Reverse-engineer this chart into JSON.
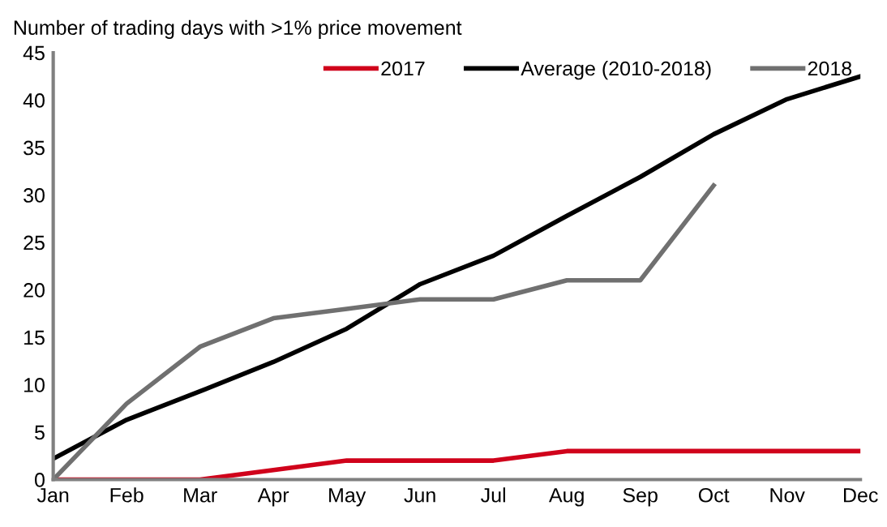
{
  "chart_data": {
    "type": "line",
    "title": "Number of trading days with >1% price movement",
    "categories": [
      "Jan",
      "Feb",
      "Mar",
      "Apr",
      "May",
      "Jun",
      "Jul",
      "Aug",
      "Sep",
      "Oct",
      "Nov",
      "Dec"
    ],
    "series": [
      {
        "name": "2017",
        "color": "#d0021b",
        "values": [
          0,
          0,
          0,
          1,
          2,
          2,
          2,
          3,
          3,
          3,
          3,
          3
        ]
      },
      {
        "name": "Average (2010-2018)",
        "color": "#000000",
        "values": [
          2.2,
          6.3,
          9.3,
          12.4,
          15.9,
          20.6,
          23.6,
          27.8,
          31.9,
          36.4,
          40.1,
          42.5
        ]
      },
      {
        "name": "2018",
        "color": "#707070",
        "values": [
          0,
          8,
          14,
          17,
          18,
          19,
          19,
          21,
          21,
          31,
          null,
          null
        ]
      }
    ],
    "ylim": [
      0,
      45
    ],
    "yticks": [
      0,
      5,
      10,
      15,
      20,
      25,
      30,
      35,
      40,
      45
    ],
    "grid": false,
    "legend": "top right",
    "marker": "none",
    "line_style": "solid"
  }
}
